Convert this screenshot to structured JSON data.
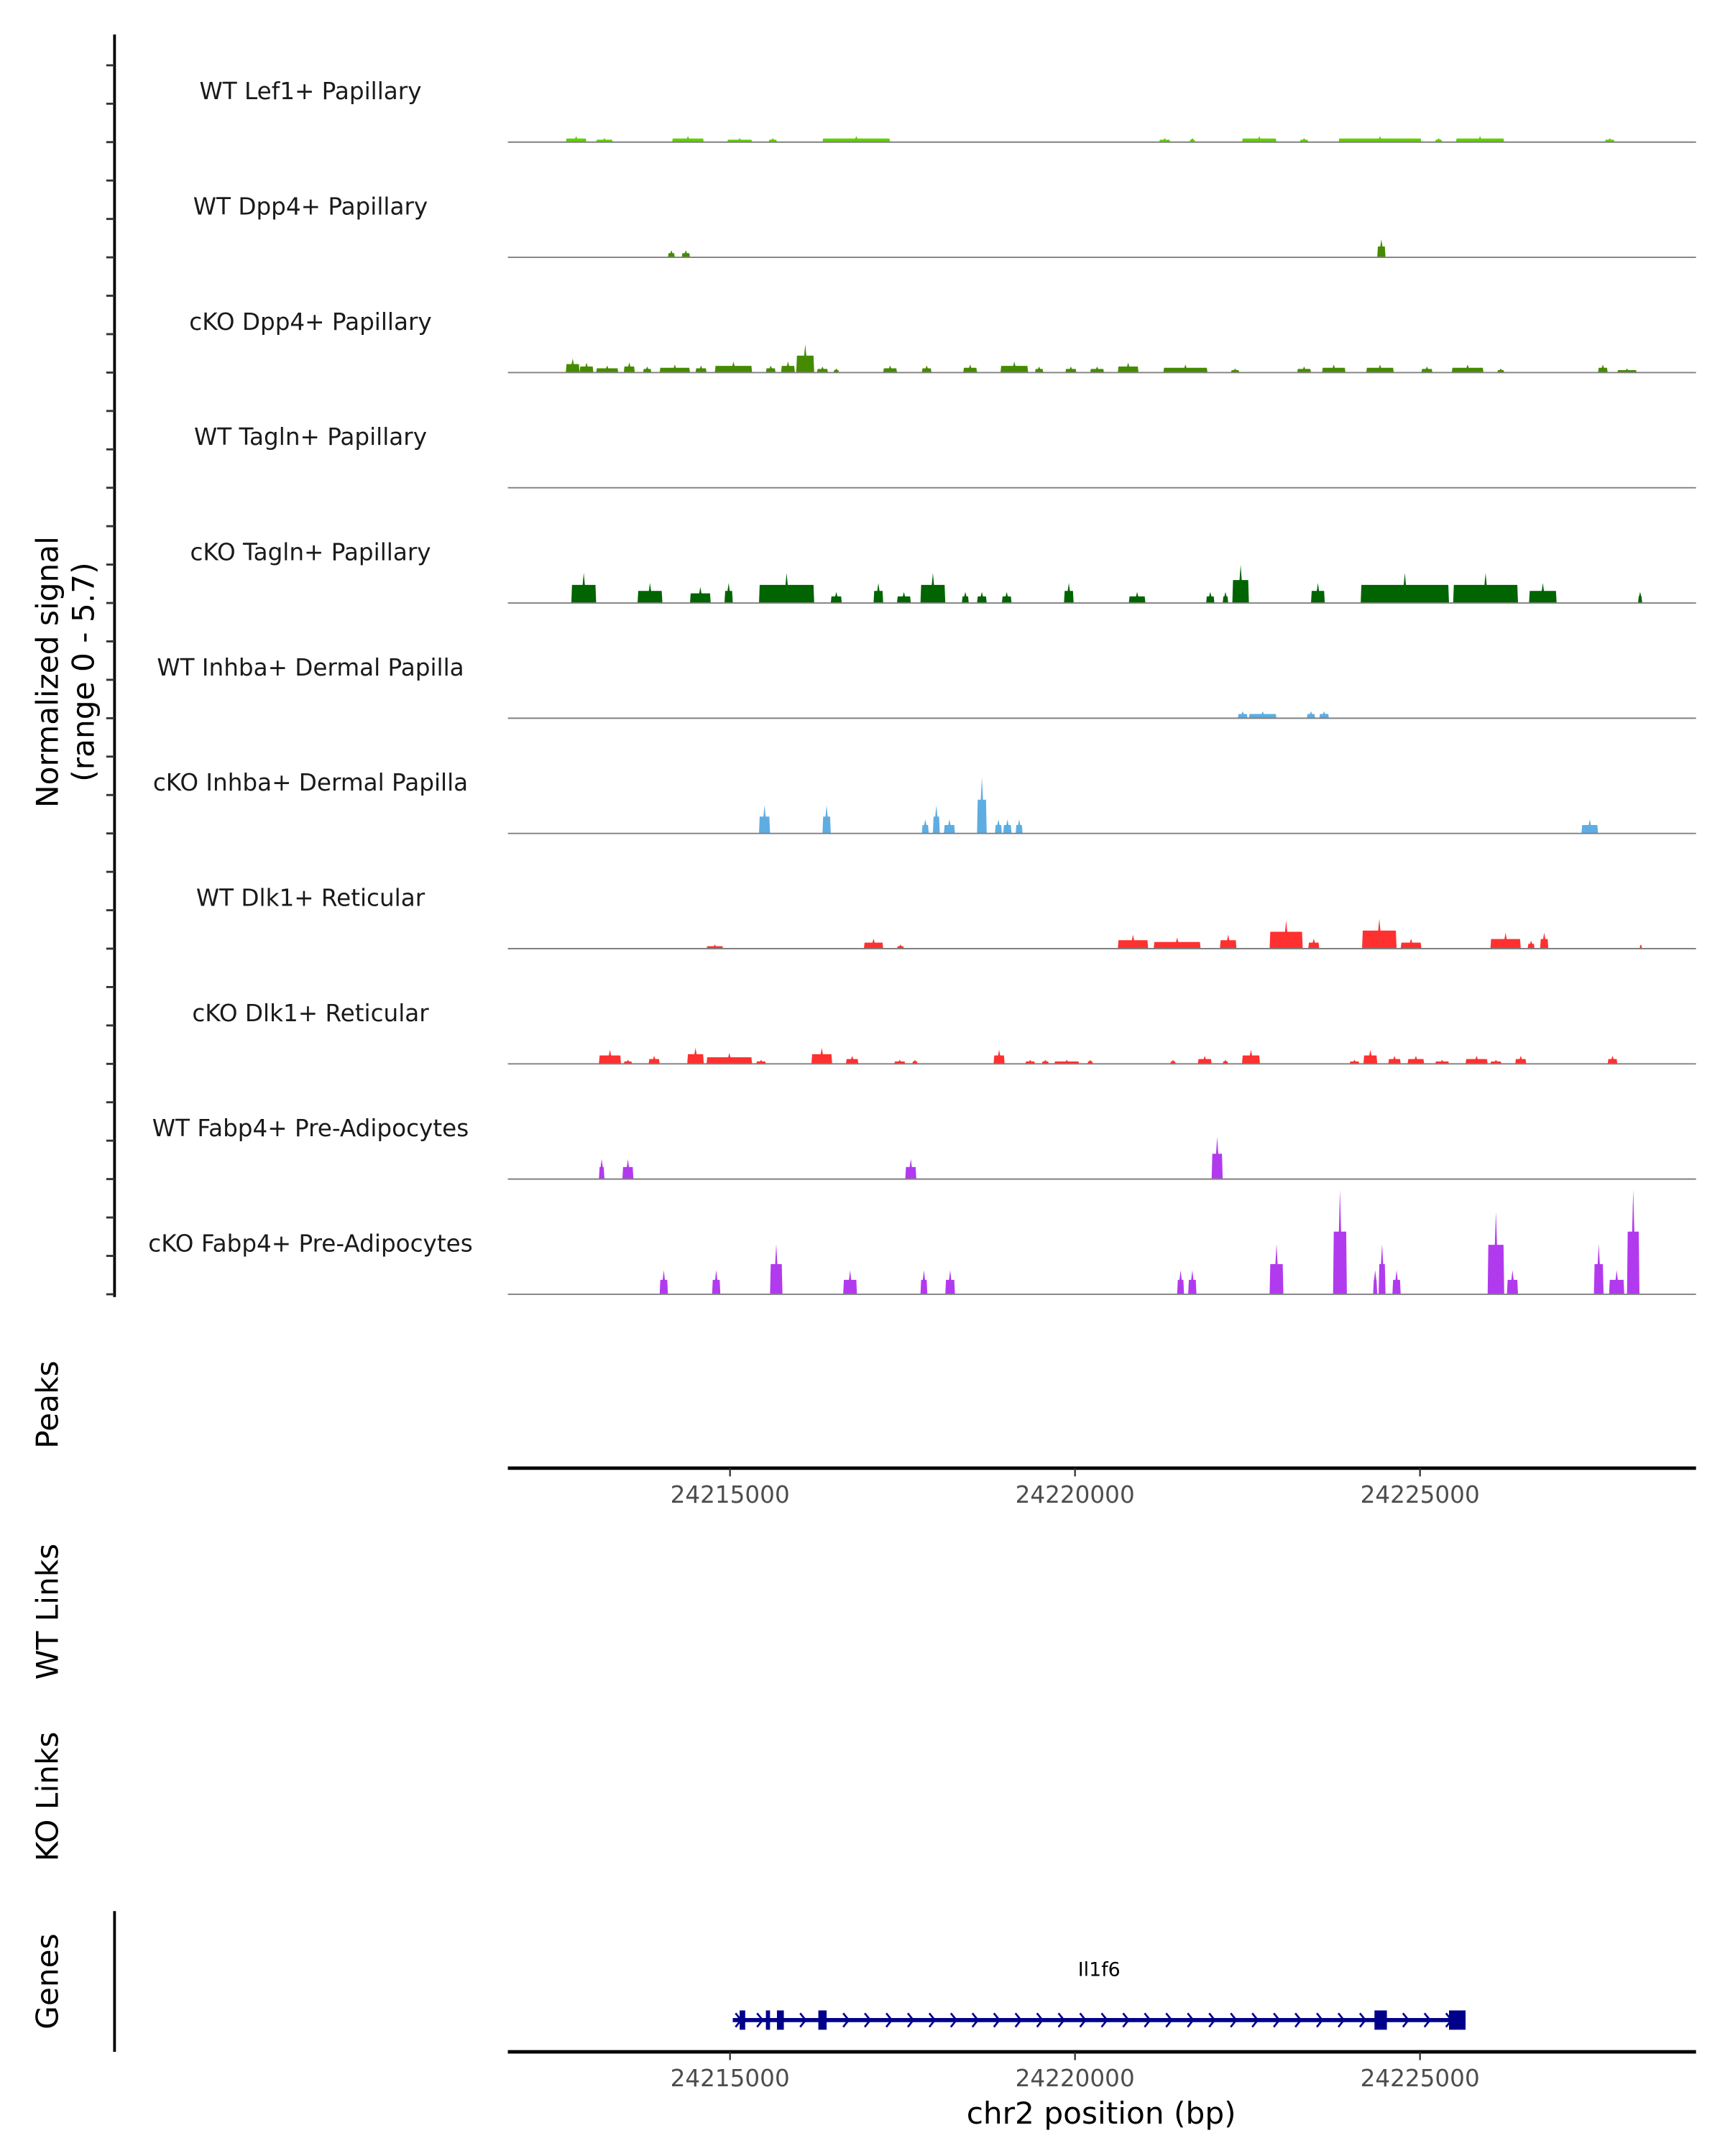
{
  "chart_data": {
    "type": "area",
    "title": "",
    "xlabel": "chr2 position (bp)",
    "ylabel": "Normalized signal\n(range 0 - 5.7)",
    "ylabel_lines": [
      "Normalized signal",
      "(range 0 - 5.7)"
    ],
    "ylim": [
      0,
      5.7
    ],
    "xlim": [
      24211780,
      24229000
    ],
    "x_ticks": [
      24215000,
      24220000,
      24225000
    ],
    "x_tick_labels": [
      "24215000",
      "24220000",
      "24225000"
    ],
    "grid": false,
    "peak_format": "[start_bp, end_bp, signal]",
    "tracks": [
      {
        "name": "WT Lef1+ Papillary",
        "color": "#5fcf00",
        "peaks": [
          [
            24212620,
            24212920,
            0.3
          ],
          [
            24213060,
            24213300,
            0.2
          ],
          [
            24214160,
            24214620,
            0.3
          ],
          [
            24214960,
            24215320,
            0.2
          ],
          [
            24215560,
            24215680,
            0.2
          ],
          [
            24216340,
            24217320,
            0.3
          ],
          [
            24221220,
            24221380,
            0.2
          ],
          [
            24221660,
            24221740,
            0.2
          ],
          [
            24222420,
            24222920,
            0.3
          ],
          [
            24223260,
            24223380,
            0.2
          ],
          [
            24223820,
            24225020,
            0.3
          ],
          [
            24225220,
            24225320,
            0.2
          ],
          [
            24225520,
            24226220,
            0.3
          ],
          [
            24227680,
            24227820,
            0.2
          ]
        ]
      },
      {
        "name": "WT Dpp4+ Papillary",
        "color": "#458b00",
        "peaks": [
          [
            24214100,
            24214200,
            0.35
          ],
          [
            24214300,
            24214420,
            0.35
          ],
          [
            24224380,
            24224500,
            0.9
          ]
        ]
      },
      {
        "name": "cKO Dpp4+ Papillary",
        "color": "#458b00",
        "peaks": [
          [
            24212620,
            24212820,
            0.7
          ],
          [
            24212820,
            24213020,
            0.5
          ],
          [
            24213060,
            24213380,
            0.35
          ],
          [
            24213460,
            24213620,
            0.5
          ],
          [
            24213740,
            24213860,
            0.3
          ],
          [
            24213980,
            24214420,
            0.4
          ],
          [
            24214500,
            24214660,
            0.35
          ],
          [
            24214780,
            24215320,
            0.55
          ],
          [
            24215520,
            24215660,
            0.35
          ],
          [
            24215740,
            24215940,
            0.55
          ],
          [
            24215960,
            24216220,
            1.4
          ],
          [
            24216260,
            24216420,
            0.3
          ],
          [
            24216500,
            24216580,
            0.2
          ],
          [
            24217220,
            24217420,
            0.35
          ],
          [
            24217780,
            24217920,
            0.35
          ],
          [
            24218380,
            24218580,
            0.4
          ],
          [
            24218920,
            24219320,
            0.55
          ],
          [
            24219420,
            24219540,
            0.3
          ],
          [
            24219860,
            24220020,
            0.3
          ],
          [
            24220220,
            24220420,
            0.3
          ],
          [
            24220620,
            24220920,
            0.5
          ],
          [
            24221280,
            24221920,
            0.4
          ],
          [
            24222260,
            24222380,
            0.2
          ],
          [
            24223220,
            24223420,
            0.3
          ],
          [
            24223580,
            24223920,
            0.4
          ],
          [
            24224220,
            24224620,
            0.4
          ],
          [
            24225020,
            24225180,
            0.3
          ],
          [
            24225460,
            24225920,
            0.4
          ],
          [
            24226120,
            24226220,
            0.2
          ],
          [
            24227580,
            24227720,
            0.4
          ],
          [
            24227860,
            24228140,
            0.2
          ]
        ]
      },
      {
        "name": "WT Tagln+ Papillary",
        "color": "#006400",
        "peaks": []
      },
      {
        "name": "cKO Tagln+ Papillary",
        "color": "#006400",
        "peaks": [
          [
            24212700,
            24213060,
            1.5
          ],
          [
            24213660,
            24214020,
            1.0
          ],
          [
            24214420,
            24214720,
            0.8
          ],
          [
            24214920,
            24215040,
            1.0
          ],
          [
            24215420,
            24216220,
            1.5
          ],
          [
            24216460,
            24216620,
            0.55
          ],
          [
            24217080,
            24217220,
            1.0
          ],
          [
            24217420,
            24217620,
            0.55
          ],
          [
            24217760,
            24218120,
            1.5
          ],
          [
            24218360,
            24218460,
            0.55
          ],
          [
            24218580,
            24218720,
            0.55
          ],
          [
            24218940,
            24219080,
            0.55
          ],
          [
            24219840,
            24219980,
            1.0
          ],
          [
            24220780,
            24221020,
            0.55
          ],
          [
            24221900,
            24222020,
            0.55
          ],
          [
            24222140,
            24222220,
            0.55
          ],
          [
            24222280,
            24222520,
            1.9
          ],
          [
            24223420,
            24223620,
            1.0
          ],
          [
            24224140,
            24225420,
            1.5
          ],
          [
            24225480,
            24226420,
            1.5
          ],
          [
            24226580,
            24226980,
            1.0
          ],
          [
            24228160,
            24228220,
            0.55
          ]
        ]
      },
      {
        "name": "WT Inhba+ Dermal Papilla",
        "color": "#5dade2",
        "peaks": [
          [
            24222360,
            24222500,
            0.35
          ],
          [
            24222520,
            24222920,
            0.35
          ],
          [
            24223360,
            24223480,
            0.35
          ],
          [
            24223540,
            24223680,
            0.35
          ]
        ]
      },
      {
        "name": "cKO Inhba+ Dermal Papilla",
        "color": "#5dade2",
        "peaks": [
          [
            24215420,
            24215580,
            1.4
          ],
          [
            24216340,
            24216460,
            1.4
          ],
          [
            24217780,
            24217880,
            0.7
          ],
          [
            24217940,
            24218040,
            1.4
          ],
          [
            24218100,
            24218260,
            0.7
          ],
          [
            24218580,
            24218720,
            2.8
          ],
          [
            24218840,
            24218940,
            0.7
          ],
          [
            24218960,
            24219080,
            0.7
          ],
          [
            24219140,
            24219240,
            0.7
          ],
          [
            24227340,
            24227580,
            0.7
          ]
        ]
      },
      {
        "name": "WT Dlk1+ Reticular",
        "color": "#ff3030",
        "peaks": [
          [
            24214660,
            24214900,
            0.2
          ],
          [
            24216940,
            24217220,
            0.5
          ],
          [
            24217420,
            24217520,
            0.2
          ],
          [
            24220620,
            24221060,
            0.7
          ],
          [
            24221140,
            24221820,
            0.55
          ],
          [
            24222100,
            24222340,
            0.7
          ],
          [
            24222820,
            24223300,
            1.4
          ],
          [
            24223380,
            24223540,
            0.5
          ],
          [
            24224160,
            24224660,
            1.5
          ],
          [
            24224720,
            24225020,
            0.5
          ],
          [
            24226020,
            24226460,
            0.8
          ],
          [
            24226560,
            24226660,
            0.4
          ],
          [
            24226740,
            24226860,
            0.8
          ],
          [
            24228180,
            24228220,
            0.2
          ]
        ]
      },
      {
        "name": "cKO Dlk1+ Reticular",
        "color": "#ff3030",
        "peaks": [
          [
            24213100,
            24213420,
            0.7
          ],
          [
            24213460,
            24213580,
            0.2
          ],
          [
            24213820,
            24213980,
            0.4
          ],
          [
            24214380,
            24214620,
            0.8
          ],
          [
            24214660,
            24215320,
            0.55
          ],
          [
            24215380,
            24215520,
            0.2
          ],
          [
            24216180,
            24216480,
            0.8
          ],
          [
            24216680,
            24216860,
            0.4
          ],
          [
            24217380,
            24217540,
            0.2
          ],
          [
            24217640,
            24217720,
            0.2
          ],
          [
            24218820,
            24218980,
            0.7
          ],
          [
            24219280,
            24219420,
            0.2
          ],
          [
            24219520,
            24219620,
            0.2
          ],
          [
            24219700,
            24220060,
            0.2
          ],
          [
            24220180,
            24220260,
            0.2
          ],
          [
            24221380,
            24221460,
            0.2
          ],
          [
            24221780,
            24221980,
            0.4
          ],
          [
            24222140,
            24222220,
            0.2
          ],
          [
            24222420,
            24222680,
            0.7
          ],
          [
            24223980,
            24224120,
            0.2
          ],
          [
            24224180,
            24224380,
            0.7
          ],
          [
            24224540,
            24224720,
            0.4
          ],
          [
            24224820,
            24225060,
            0.4
          ],
          [
            24225220,
            24225420,
            0.2
          ],
          [
            24225660,
            24225980,
            0.4
          ],
          [
            24226020,
            24226180,
            0.2
          ],
          [
            24226380,
            24226540,
            0.4
          ],
          [
            24227720,
            24227860,
            0.4
          ]
        ]
      },
      {
        "name": "WT Fabp4+ Pre-Adipocytes",
        "color": "#b23aee",
        "peaks": [
          [
            24213100,
            24213180,
            1.0
          ],
          [
            24213440,
            24213600,
            1.0
          ],
          [
            24217540,
            24217700,
            1.0
          ],
          [
            24221980,
            24222140,
            2.1
          ]
        ]
      },
      {
        "name": "cKO Fabp4+ Pre-Adipocytes",
        "color": "#b23aee",
        "peaks": [
          [
            24213980,
            24214100,
            1.2
          ],
          [
            24214740,
            24214860,
            1.2
          ],
          [
            24215580,
            24215760,
            2.5
          ],
          [
            24216640,
            24216840,
            1.2
          ],
          [
            24217760,
            24217860,
            1.2
          ],
          [
            24218120,
            24218260,
            1.2
          ],
          [
            24221480,
            24221580,
            1.2
          ],
          [
            24221640,
            24221760,
            1.2
          ],
          [
            24222820,
            24223020,
            2.5
          ],
          [
            24223740,
            24223940,
            5.2
          ],
          [
            24224320,
            24224380,
            1.2
          ],
          [
            24224400,
            24224500,
            2.5
          ],
          [
            24224600,
            24224720,
            1.2
          ],
          [
            24225980,
            24226220,
            4.1
          ],
          [
            24226260,
            24226420,
            1.2
          ],
          [
            24227520,
            24227660,
            2.5
          ],
          [
            24227740,
            24227960,
            1.2
          ],
          [
            24228000,
            24228180,
            5.2
          ]
        ]
      }
    ],
    "panels": {
      "peaks": "Peaks",
      "wt_links": "WT Links",
      "ko_links": "KO Links",
      "genes": "Genes"
    },
    "genes": [
      {
        "name": "Il1f6",
        "start": 24215040,
        "end": 24225660,
        "strand": "+",
        "color": "#00008b",
        "exons": [
          [
            24215140,
            24215220
          ],
          [
            24215520,
            24215580
          ],
          [
            24215680,
            24215780
          ],
          [
            24216280,
            24216400
          ],
          [
            24224340,
            24224520
          ],
          [
            24225420,
            24225660
          ]
        ]
      }
    ]
  }
}
